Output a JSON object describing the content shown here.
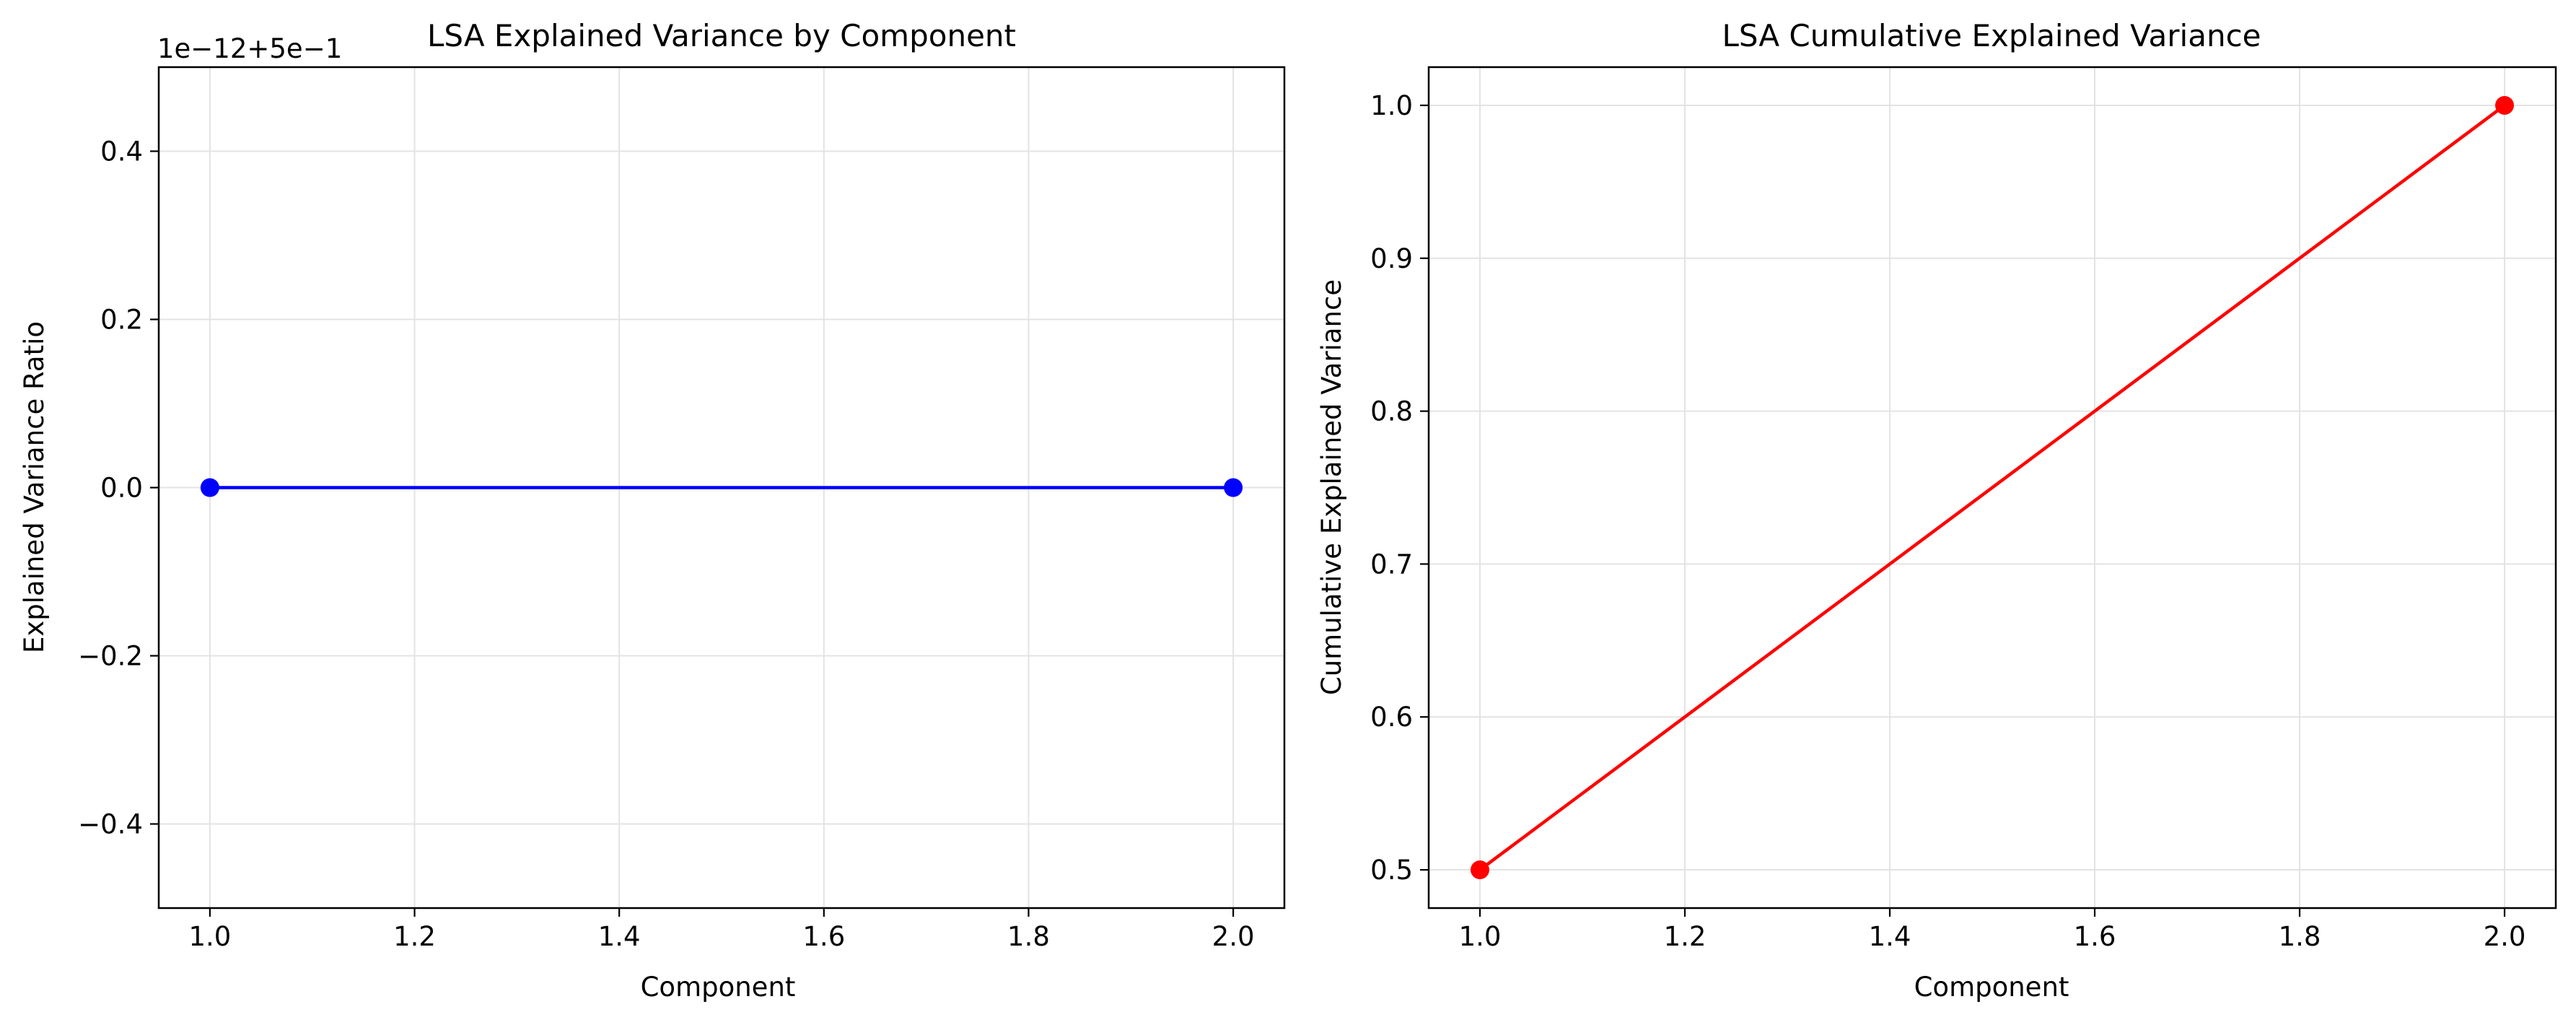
{
  "chart_data": [
    {
      "type": "line",
      "title": "LSA Explained Variance by Component",
      "xlabel": "Component",
      "ylabel": "Explained Variance Ratio",
      "offset_text": "1e−12+5e−1",
      "x": [
        1,
        2
      ],
      "series": [
        {
          "values": [
            0.0,
            0.0
          ],
          "color": "#0000ff",
          "marker": "circle"
        }
      ],
      "xlim": [
        0.95,
        2.05
      ],
      "ylim": [
        -0.5,
        0.5
      ],
      "xticks": [
        1.0,
        1.2,
        1.4,
        1.6,
        1.8,
        2.0
      ],
      "xtick_labels": [
        "1.0",
        "1.2",
        "1.4",
        "1.6",
        "1.8",
        "2.0"
      ],
      "yticks": [
        -0.4,
        -0.2,
        0.0,
        0.2,
        0.4
      ],
      "ytick_labels": [
        "−0.4",
        "−0.2",
        "0.0",
        "0.2",
        "0.4"
      ],
      "grid": true
    },
    {
      "type": "line",
      "title": "LSA Cumulative Explained Variance",
      "xlabel": "Component",
      "ylabel": "Cumulative Explained Variance",
      "x": [
        1,
        2
      ],
      "series": [
        {
          "values": [
            0.5,
            1.0
          ],
          "color": "#ff0000",
          "marker": "circle"
        }
      ],
      "xlim": [
        0.95,
        2.05
      ],
      "ylim": [
        0.475,
        1.025
      ],
      "xticks": [
        1.0,
        1.2,
        1.4,
        1.6,
        1.8,
        2.0
      ],
      "xtick_labels": [
        "1.0",
        "1.2",
        "1.4",
        "1.6",
        "1.8",
        "2.0"
      ],
      "yticks": [
        0.5,
        0.6,
        0.7,
        0.8,
        0.9,
        1.0
      ],
      "ytick_labels": [
        "0.5",
        "0.6",
        "0.7",
        "0.8",
        "0.9",
        "1.0"
      ],
      "grid": true
    }
  ]
}
